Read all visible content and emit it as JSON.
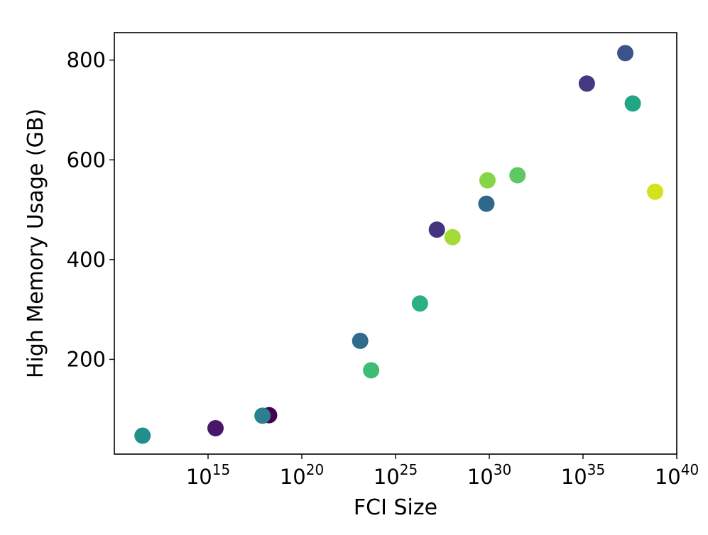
{
  "chart_data": {
    "type": "scatter",
    "xlabel": "FCI Size",
    "ylabel": "High Memory Usage (GB)",
    "x_scale": "log",
    "x_tick_base": "10",
    "x_ticks": [
      {
        "value": 1000000000000000.0,
        "exponent": "15"
      },
      {
        "value": 1e+20,
        "exponent": "20"
      },
      {
        "value": 1e+25,
        "exponent": "25"
      },
      {
        "value": 1e+30,
        "exponent": "30"
      },
      {
        "value": 1e+35,
        "exponent": "35"
      },
      {
        "value": 1e+40,
        "exponent": "40"
      }
    ],
    "y_ticks": [
      {
        "value": 200,
        "label": "200"
      },
      {
        "value": 400,
        "label": "400"
      },
      {
        "value": 600,
        "label": "600"
      },
      {
        "value": 800,
        "label": "800"
      }
    ],
    "xlim": [
      10000000000.0,
      1e+40
    ],
    "ylim": [
      10,
      855
    ],
    "grid": false,
    "points": [
      {
        "x": 320000000000.0,
        "y": 47,
        "color": "#21908c"
      },
      {
        "x": 2500000000000000.0,
        "y": 62,
        "color": "#481769"
      },
      {
        "x": 1.8e+18,
        "y": 88,
        "color": "#440154"
      },
      {
        "x": 8e+17,
        "y": 87,
        "color": "#2c7f8e"
      },
      {
        "x": 1.3e+23,
        "y": 237,
        "color": "#2f6c8e"
      },
      {
        "x": 5e+23,
        "y": 178,
        "color": "#3dbc74"
      },
      {
        "x": 2e+26,
        "y": 312,
        "color": "#2bb07f"
      },
      {
        "x": 1.6e+27,
        "y": 460,
        "color": "#46337f"
      },
      {
        "x": 1.1e+28,
        "y": 445,
        "color": "#a5db36"
      },
      {
        "x": 8e+29,
        "y": 559,
        "color": "#86d549"
      },
      {
        "x": 7e+29,
        "y": 512,
        "color": "#30678d"
      },
      {
        "x": 3.2e+31,
        "y": 569,
        "color": "#5ec962"
      },
      {
        "x": 1.6e+35,
        "y": 753,
        "color": "#443983"
      },
      {
        "x": 1.8e+37,
        "y": 814,
        "color": "#3b528b"
      },
      {
        "x": 4.5e+37,
        "y": 713,
        "color": "#21a585"
      },
      {
        "x": 7e+38,
        "y": 536,
        "color": "#d2e21b"
      }
    ]
  }
}
